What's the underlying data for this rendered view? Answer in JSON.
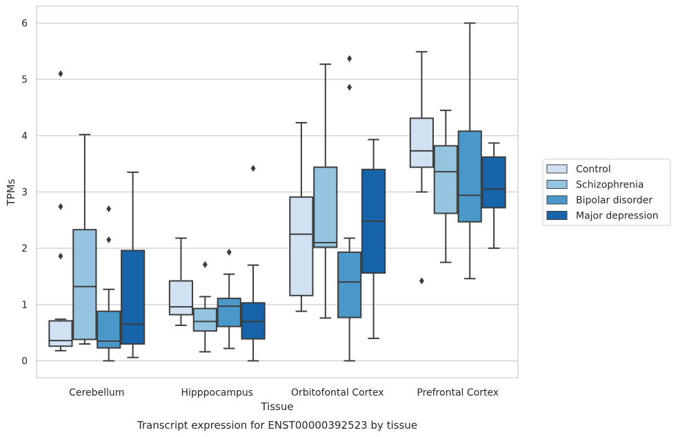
{
  "chart_data": {
    "type": "box",
    "title": "",
    "caption": "Transcript expression for ENST00000392523 by tissue",
    "xlabel": "Tissue",
    "ylabel": "TPMs",
    "ylim": [
      -0.3,
      6.3
    ],
    "yticks": [
      "0",
      "1",
      "2",
      "3",
      "4",
      "5",
      "6"
    ],
    "grid": true,
    "legend_position": "right",
    "categories": [
      "Cerebellum",
      "Hipppocampus",
      "Orbitofontal Cortex",
      "Prefrontal Cortex"
    ],
    "series": [
      {
        "name": "Control",
        "color": "#d0e1f2",
        "boxes": [
          {
            "whislo": 0.18,
            "q1": 0.26,
            "med": 0.36,
            "q3": 0.71,
            "whishi": 0.74,
            "fliers": [
              1.86,
              2.74,
              5.1
            ]
          },
          {
            "whislo": 0.63,
            "q1": 0.82,
            "med": 0.96,
            "q3": 1.42,
            "whishi": 2.18,
            "fliers": []
          },
          {
            "whislo": 0.88,
            "q1": 1.16,
            "med": 2.25,
            "q3": 2.91,
            "whishi": 4.23,
            "fliers": []
          },
          {
            "whislo": 3.0,
            "q1": 3.44,
            "med": 3.73,
            "q3": 4.31,
            "whishi": 5.49,
            "fliers": [
              1.42
            ]
          }
        ]
      },
      {
        "name": "Schizophrenia",
        "color": "#94c4df",
        "boxes": [
          {
            "whislo": 0.3,
            "q1": 0.38,
            "med": 1.32,
            "q3": 2.33,
            "whishi": 4.02,
            "fliers": []
          },
          {
            "whislo": 0.16,
            "q1": 0.53,
            "med": 0.7,
            "q3": 0.93,
            "whishi": 1.14,
            "fliers": [
              1.71
            ]
          },
          {
            "whislo": 0.76,
            "q1": 2.02,
            "med": 2.1,
            "q3": 3.44,
            "whishi": 5.27,
            "fliers": []
          },
          {
            "whislo": 1.75,
            "q1": 2.62,
            "med": 3.36,
            "q3": 3.82,
            "whishi": 4.45,
            "fliers": []
          }
        ]
      },
      {
        "name": "Bipolar disorder",
        "color": "#4a98c9",
        "boxes": [
          {
            "whislo": 0.0,
            "q1": 0.23,
            "med": 0.35,
            "q3": 0.88,
            "whishi": 1.27,
            "fliers": [
              2.15,
              2.7
            ]
          },
          {
            "whislo": 0.22,
            "q1": 0.61,
            "med": 0.97,
            "q3": 1.11,
            "whishi": 1.54,
            "fliers": [
              1.93
            ]
          },
          {
            "whislo": 0.0,
            "q1": 0.77,
            "med": 1.4,
            "q3": 1.93,
            "whishi": 2.18,
            "fliers": [
              4.86,
              5.37
            ]
          },
          {
            "whislo": 1.46,
            "q1": 2.47,
            "med": 2.94,
            "q3": 4.08,
            "whishi": 6.0,
            "fliers": []
          }
        ]
      },
      {
        "name": "Major depression",
        "color": "#1764ab",
        "boxes": [
          {
            "whislo": 0.06,
            "q1": 0.3,
            "med": 0.65,
            "q3": 1.96,
            "whishi": 3.35,
            "fliers": []
          },
          {
            "whislo": 0.0,
            "q1": 0.39,
            "med": 0.7,
            "q3": 1.03,
            "whishi": 1.7,
            "fliers": [
              3.42
            ]
          },
          {
            "whislo": 0.4,
            "q1": 1.56,
            "med": 2.48,
            "q3": 3.4,
            "whishi": 3.93,
            "fliers": []
          },
          {
            "whislo": 2.0,
            "q1": 2.72,
            "med": 3.05,
            "q3": 3.62,
            "whishi": 3.87,
            "fliers": []
          }
        ]
      }
    ]
  }
}
